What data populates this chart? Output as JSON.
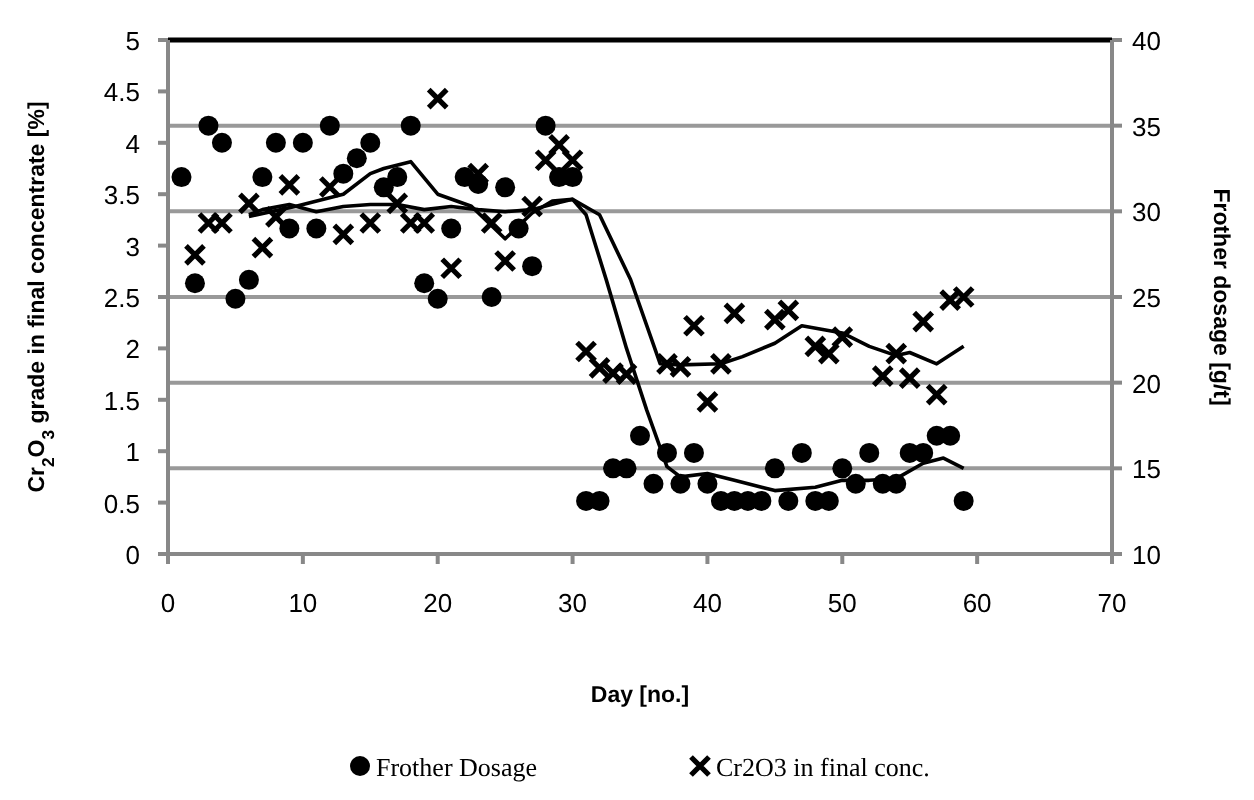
{
  "chart_data": {
    "type": "scatter",
    "xlabel": "Day [no.]",
    "ylabel": "Cr$_{2}$O$_{3}$ grade in final concentrate [%]",
    "y2label": "Frother dosage [g/t]",
    "xlim": [
      0,
      70
    ],
    "xticks": [
      0,
      10,
      20,
      30,
      40,
      50,
      60,
      70
    ],
    "ylim": [
      0,
      5
    ],
    "yticks": [
      0,
      0.5,
      1,
      1.5,
      2,
      2.5,
      3,
      3.5,
      4,
      4.5,
      5
    ],
    "y2lim": [
      10,
      40
    ],
    "y2ticks": [
      10,
      15,
      20,
      25,
      30,
      35,
      40
    ],
    "grid": "y2",
    "legend": "bottom",
    "series": [
      {
        "name": "Frother Dosage",
        "marker": "circle",
        "axis": "y2",
        "color": "#000000",
        "x": [
          1,
          2,
          3,
          4,
          5,
          6,
          7,
          8,
          9,
          10,
          11,
          12,
          13,
          14,
          15,
          16,
          17,
          18,
          19,
          20,
          21,
          22,
          23,
          24,
          25,
          26,
          27,
          28,
          29,
          30,
          31,
          32,
          33,
          34,
          35,
          36,
          37,
          38,
          39,
          40,
          41,
          42,
          43,
          44,
          45,
          46,
          47,
          48,
          49,
          50,
          51,
          52,
          53,
          54,
          55,
          56,
          57,
          58,
          59
        ],
        "values": [
          32,
          25.8,
          35,
          34,
          24.9,
          26,
          32,
          34,
          29,
          34,
          29,
          35,
          32.2,
          33.1,
          34,
          31.4,
          32,
          35,
          25.8,
          24.9,
          29,
          32,
          31.6,
          25,
          31.4,
          29,
          26.8,
          35,
          32,
          32,
          13.1,
          13.1,
          15,
          15,
          16.9,
          14.1,
          15.9,
          14.1,
          15.9,
          14.1,
          13.1,
          13.1,
          13.1,
          13.1,
          15,
          13.1,
          15.9,
          13.1,
          13.1,
          15,
          14.1,
          15.9,
          14.1,
          14.1,
          15.9,
          15.9,
          16.9,
          16.9,
          13.1
        ]
      },
      {
        "name": "Cr2O3 in final conc.",
        "marker": "cross",
        "axis": "y",
        "color": "#000000",
        "x": [
          2,
          3,
          4,
          6,
          7,
          8,
          9,
          12,
          13,
          15,
          17,
          18,
          19,
          20,
          21,
          23,
          24,
          25,
          27,
          28,
          29,
          30,
          31,
          32,
          33,
          34,
          37,
          38,
          39,
          40,
          41,
          42,
          45,
          46,
          48,
          49,
          50,
          53,
          54,
          55,
          56,
          57,
          58,
          59
        ],
        "values": [
          2.91,
          3.22,
          3.22,
          3.41,
          2.98,
          3.28,
          3.59,
          3.57,
          3.11,
          3.22,
          3.41,
          3.22,
          3.22,
          4.43,
          2.78,
          3.7,
          3.22,
          2.85,
          3.38,
          3.83,
          3.98,
          3.83,
          1.97,
          1.81,
          1.76,
          1.75,
          1.85,
          1.82,
          2.22,
          1.48,
          1.85,
          2.34,
          2.28,
          2.37,
          2.02,
          1.95,
          2.11,
          1.73,
          1.95,
          1.71,
          2.26,
          1.55,
          2.47,
          2.5
        ]
      },
      {
        "type": "line",
        "marker": "none",
        "axis": "y2",
        "color": "#000000",
        "x": [
          6,
          9.5,
          13,
          15,
          16,
          18,
          20,
          22.5,
          25,
          27,
          28.5,
          30,
          31,
          32.5,
          34,
          35.5,
          37,
          38,
          40,
          42,
          45,
          48,
          50,
          52,
          54,
          56,
          57.5,
          59
        ],
        "values": [
          29.7,
          30.3,
          31,
          32.2,
          32.5,
          32.9,
          31,
          30.3,
          28.4,
          29.9,
          30.6,
          30.7,
          29.8,
          26,
          22,
          18.4,
          15.1,
          14.5,
          14.7,
          14.3,
          13.7,
          13.9,
          14.3,
          14.3,
          14.4,
          15.3,
          15.6,
          15
        ]
      },
      {
        "type": "line",
        "marker": "none",
        "axis": "y",
        "color": "#000000",
        "x": [
          6,
          7,
          9,
          11,
          13,
          15,
          17,
          19,
          21,
          23,
          25,
          27,
          29,
          30,
          32,
          34.3,
          36.5,
          38,
          41,
          42.6,
          45,
          47,
          50,
          52,
          54,
          55,
          57,
          59
        ],
        "values": [
          3.3,
          3.35,
          3.4,
          3.33,
          3.38,
          3.4,
          3.4,
          3.35,
          3.38,
          3.35,
          3.33,
          3.35,
          3.42,
          3.45,
          3.3,
          2.67,
          1.85,
          1.84,
          1.85,
          1.92,
          2.05,
          2.22,
          2.15,
          2.02,
          1.93,
          1.96,
          1.85,
          2.02
        ]
      }
    ]
  }
}
